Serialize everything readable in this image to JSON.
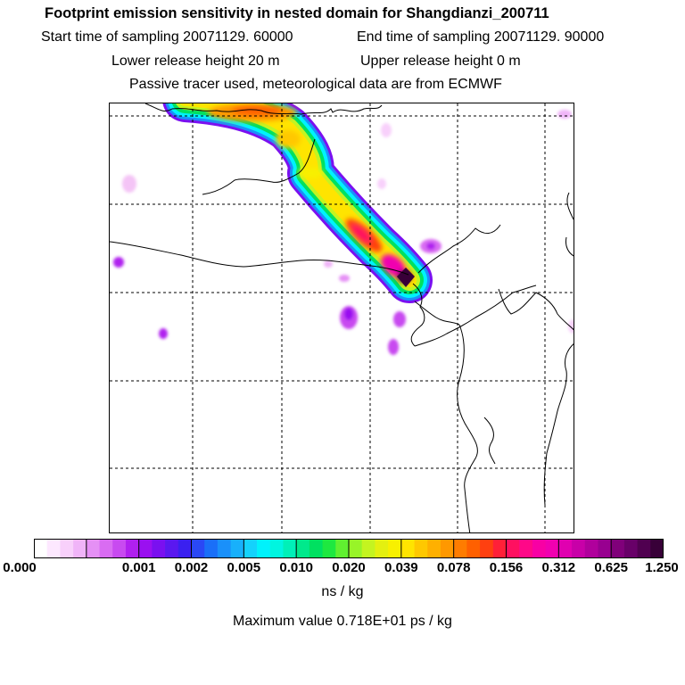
{
  "header": {
    "title": "Footprint emission sensitivity in nested domain for Shangdianzi_200711",
    "start_time": "Start time of sampling 20071129. 60000",
    "end_time": "End time of sampling 20071129. 90000",
    "lower_release": "Lower release height   20 m",
    "upper_release": "Upper release height    0 m",
    "info": "Passive tracer used, meteorological data are from ECMWF"
  },
  "colorbar": {
    "tick_labels": [
      "0.000",
      "0.001",
      "0.002",
      "0.005",
      "0.010",
      "0.020",
      "0.039",
      "0.078",
      "0.156",
      "0.312",
      "0.625",
      "1.250"
    ],
    "colors": [
      [
        "#ffffff",
        "#fde8ff",
        "#f8d0fb",
        "#f0b4f8"
      ],
      [
        "#e590f5",
        "#d96cf2",
        "#c84af0",
        "#b020ef"
      ],
      [
        "#9a10f0",
        "#7a10f0",
        "#5a18f0",
        "#3a20f0"
      ],
      [
        "#2a48f5",
        "#1a6ff8",
        "#1a90fa",
        "#18b0fb"
      ],
      [
        "#14d2fc",
        "#00f2fc",
        "#00f5e0",
        "#00f0b8"
      ],
      [
        "#00e98c",
        "#00e060",
        "#1ee840",
        "#60f030"
      ],
      [
        "#98f428",
        "#c4f420",
        "#e4f010",
        "#f8f000"
      ],
      [
        "#ffe400",
        "#ffc800",
        "#ffb000",
        "#ff9800"
      ],
      [
        "#ff7c00",
        "#ff6000",
        "#ff4010",
        "#ff2038"
      ],
      [
        "#ff1060",
        "#ff0888",
        "#f800a4",
        "#f000b0"
      ],
      [
        "#e000b0",
        "#c800a8",
        "#b0009c",
        "#980090"
      ],
      [
        "#80007a",
        "#680068",
        "#500050",
        "#380038"
      ]
    ],
    "unit": "ns / kg",
    "max_value": "Maximum value  0.718E+01 ps / kg"
  },
  "map": {
    "gridlines": "dashed",
    "receptor": "Shangdianzi"
  }
}
